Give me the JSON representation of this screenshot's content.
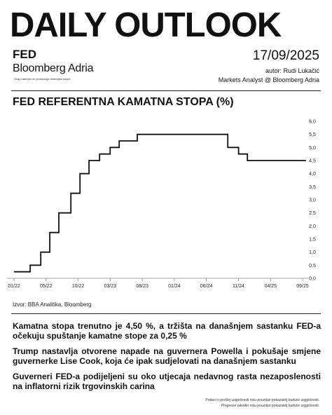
{
  "header": {
    "title": "DAILY OUTLOOK",
    "section": "FED",
    "brand": "Bloomberg Adria",
    "tagline": "Ovaj materijal ne predstavlja financijski savjet.",
    "date": "17/09/2025",
    "author": "autor: Rudi Lukačić",
    "role": "Markets Analyst @ Bloomberg Adria"
  },
  "chart_title": "FED REFERENTNA KAMATNA STOPA (%)",
  "chart_data": {
    "type": "line",
    "title": "FED REFERENTNA KAMATNA STOPA (%)",
    "xlabel": "",
    "ylabel": "",
    "x_tick_labels": [
      "01/22",
      "05/22",
      "10/22",
      "03/23",
      "08/23",
      "01/24",
      "06/24",
      "11/24",
      "04/25",
      "09/25"
    ],
    "y_tick_labels": [
      "0,0",
      "0,5",
      "1,0",
      "1,5",
      "2,0",
      "2,5",
      "3,0",
      "3,5",
      "4,0",
      "4,5",
      "5,0",
      "5,5",
      "6,0"
    ],
    "ylim": [
      0,
      6
    ],
    "y_axis_position": "right",
    "line_style": "step",
    "color": "#111111",
    "series": [
      {
        "points": [
          {
            "x": "2022-01-01",
            "y": 0.25
          },
          {
            "x": "2022-03-17",
            "y": 0.5
          },
          {
            "x": "2022-05-05",
            "y": 1.0
          },
          {
            "x": "2022-06-16",
            "y": 1.75
          },
          {
            "x": "2022-07-28",
            "y": 2.5
          },
          {
            "x": "2022-09-22",
            "y": 3.25
          },
          {
            "x": "2022-11-03",
            "y": 4.0
          },
          {
            "x": "2022-12-15",
            "y": 4.5
          },
          {
            "x": "2023-02-02",
            "y": 4.75
          },
          {
            "x": "2023-03-23",
            "y": 5.0
          },
          {
            "x": "2023-05-04",
            "y": 5.25
          },
          {
            "x": "2023-07-27",
            "y": 5.5
          },
          {
            "x": "2024-09-19",
            "y": 5.0
          },
          {
            "x": "2024-11-08",
            "y": 4.75
          },
          {
            "x": "2024-12-19",
            "y": 4.5
          },
          {
            "x": "2025-09-17",
            "y": 4.5
          }
        ]
      }
    ]
  },
  "source": "Izvor: BBA Analitika, Bloomberg",
  "news": [
    "Kamatna stopa trenutno je 4,50 %, a tržišta na današnjem sastanku FED-a očekuju spuštanje kamatne stope za 0,25 %",
    "Trump nastavlja otvorene napade na guvernera Powella i pokušaje smjene guvernerke Lise Cook, koja će ipak sudjelovati na današnjem sastanku",
    "Guverneri FED-a podijeljeni su oko utjecaja nedavnog rasta nezaposlenosti na inflatorni rizik trgovinskih carina"
  ],
  "disclaimer": [
    "Podaci o prošloj uspješnosti nisu pouzdan pokazatelj buduće uspješnosti.",
    "Prognoze također nisu pouzdan pokazatelj buduće uspješnosti."
  ]
}
